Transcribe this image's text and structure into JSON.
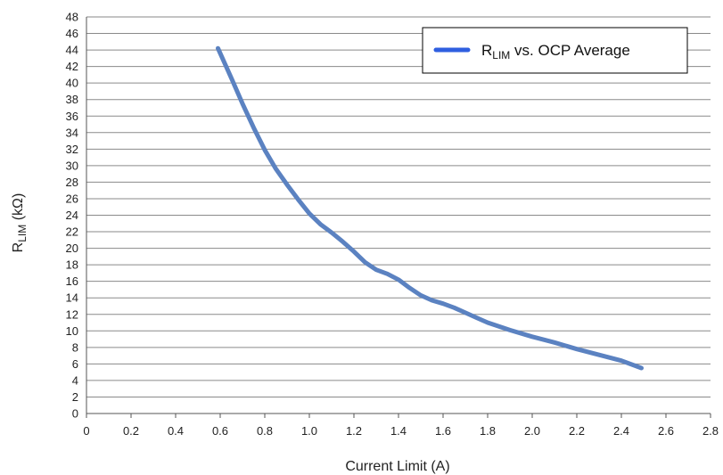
{
  "chart_data": {
    "type": "line",
    "title": "",
    "xlabel": "Current Limit (A)",
    "ylabel": {
      "main": "R",
      "sub": "LIM",
      "rest": " (kΩ)"
    },
    "xlim": [
      0,
      2.8
    ],
    "ylim": [
      0,
      48
    ],
    "x_ticks": [
      "0",
      "0.2",
      "0.4",
      "0.6",
      "0.8",
      "1.0",
      "1.2",
      "1.4",
      "1.6",
      "1.8",
      "2.0",
      "2.2",
      "2.4",
      "2.6",
      "2.8"
    ],
    "y_ticks": [
      "0",
      "2",
      "4",
      "6",
      "8",
      "10",
      "12",
      "14",
      "16",
      "18",
      "20",
      "22",
      "24",
      "26",
      "28",
      "30",
      "32",
      "34",
      "36",
      "38",
      "40",
      "42",
      "44",
      "46",
      "48"
    ],
    "grid": {
      "horizontal": true,
      "vertical": false
    },
    "legend": {
      "placement": "top-right"
    },
    "series": [
      {
        "legend_label": {
          "main": "R",
          "sub": "LIM",
          "rest": " vs. OCP Average"
        },
        "color": "#5b82c1",
        "legend_color": "#2f5fe0",
        "x": [
          0.59,
          0.65,
          0.7,
          0.75,
          0.8,
          0.85,
          0.9,
          0.95,
          1.0,
          1.05,
          1.1,
          1.15,
          1.2,
          1.25,
          1.3,
          1.35,
          1.4,
          1.45,
          1.5,
          1.55,
          1.6,
          1.65,
          1.7,
          1.75,
          1.8,
          1.9,
          2.0,
          2.1,
          2.2,
          2.3,
          2.4,
          2.49
        ],
        "y": [
          44.2,
          40.6,
          37.5,
          34.6,
          31.9,
          29.6,
          27.7,
          25.9,
          24.2,
          22.9,
          21.9,
          20.8,
          19.6,
          18.3,
          17.4,
          16.9,
          16.2,
          15.2,
          14.3,
          13.7,
          13.3,
          12.8,
          12.2,
          11.6,
          11.0,
          10.1,
          9.3,
          8.6,
          7.8,
          7.1,
          6.4,
          5.5
        ]
      }
    ]
  }
}
